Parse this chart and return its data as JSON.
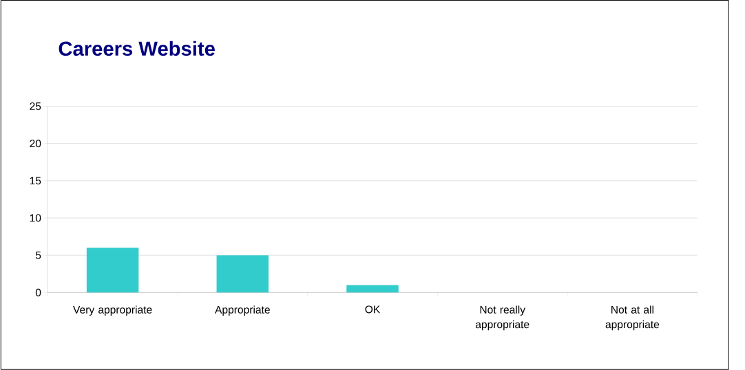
{
  "chart_data": {
    "type": "bar",
    "title": "Careers Website",
    "categories": [
      "Very appropriate",
      "Appropriate",
      "OK",
      "Not really appropriate",
      "Not at all appropriate"
    ],
    "values": [
      6,
      5,
      1,
      0,
      0
    ],
    "color": "#33cccc",
    "ylim": [
      0,
      25
    ],
    "yticks": [
      0,
      5,
      10,
      15,
      20,
      25
    ],
    "grid": "y"
  }
}
